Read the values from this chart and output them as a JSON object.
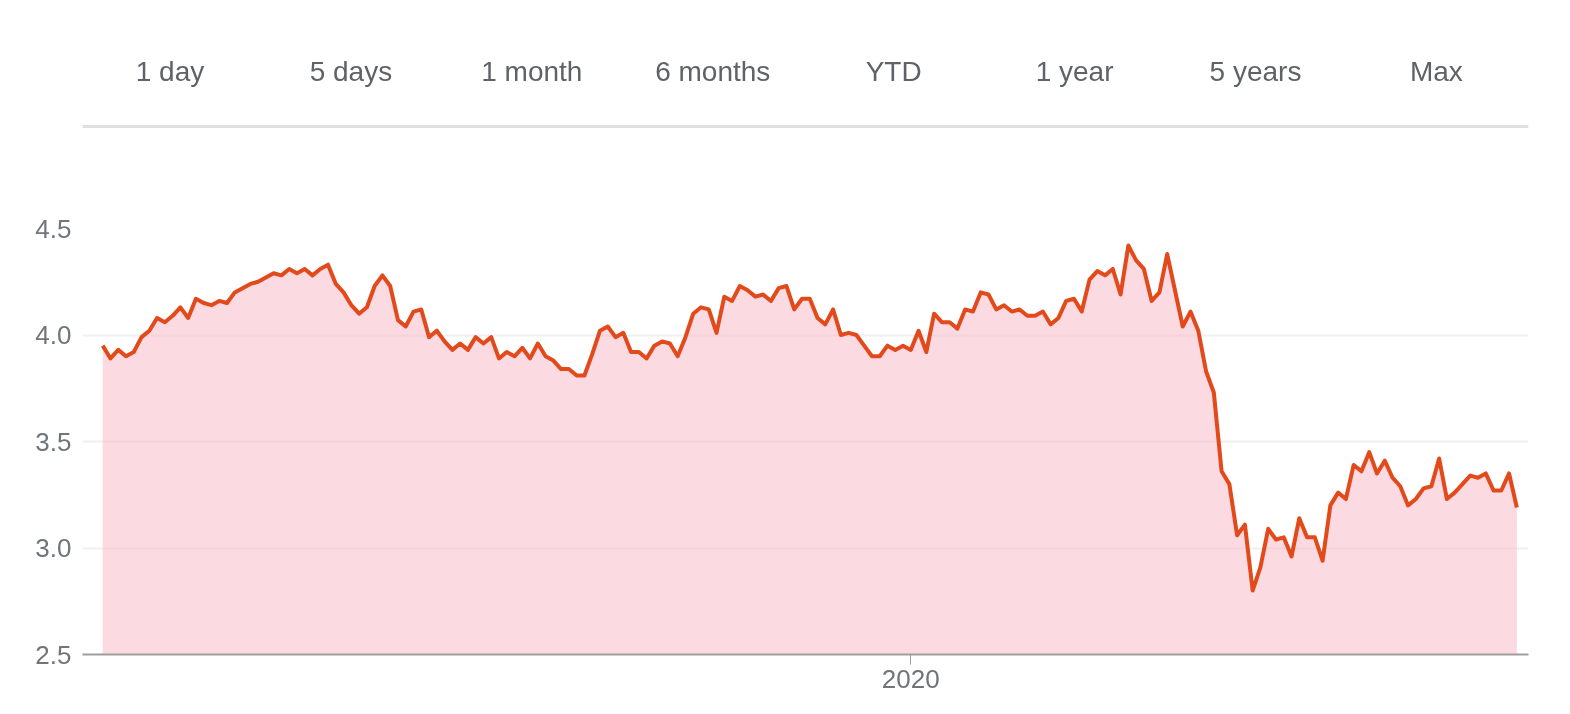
{
  "chart_data": {
    "type": "area",
    "annotations": [
      "1 day",
      "5 days",
      "1 month",
      "6 months",
      "YTD",
      "1 year",
      "5 years",
      "Max"
    ],
    "categories": [
      null,
      null,
      null,
      null,
      null,
      null,
      null,
      null,
      null,
      null,
      null,
      null,
      null,
      null,
      null,
      null,
      null,
      null,
      null,
      null,
      null,
      null,
      null,
      null,
      null,
      null,
      null,
      null,
      null,
      null,
      null,
      null,
      null,
      null,
      null,
      null,
      null,
      null,
      null,
      null,
      null,
      null,
      null,
      null,
      null,
      null,
      null,
      null,
      null,
      null,
      null,
      null,
      null,
      null,
      null,
      null,
      null,
      null,
      null,
      null,
      null,
      null,
      null,
      null,
      null,
      null,
      null,
      null,
      null,
      null,
      null,
      null,
      null,
      null,
      null,
      null,
      null,
      null,
      null,
      null,
      null,
      null,
      null,
      null,
      null,
      null,
      null,
      null,
      null,
      null,
      null,
      null,
      null,
      null,
      null,
      null,
      null,
      null,
      null,
      null,
      null,
      null,
      null,
      null,
      "2020",
      null,
      null,
      null,
      null,
      null,
      null,
      null,
      null,
      null,
      null,
      null,
      null,
      null,
      null,
      null,
      null,
      null,
      null,
      null,
      null,
      null,
      null,
      null,
      null,
      null,
      null,
      null,
      null,
      null,
      null,
      null,
      null,
      null,
      null,
      null,
      null,
      null,
      null,
      null,
      null,
      null,
      null,
      null,
      null,
      null,
      null,
      null,
      null,
      null,
      null,
      null,
      null,
      null,
      null,
      null,
      null,
      null,
      null,
      null,
      null,
      null,
      null,
      null,
      null,
      null,
      null,
      null,
      null,
      null,
      null,
      null,
      null,
      null,
      null,
      null,
      null,
      null,
      null
    ],
    "series": [
      {
        "color": "#e34a1b",
        "values": [
          3.95,
          3.89,
          3.93,
          3.9,
          3.92,
          3.99,
          4.02,
          4.08,
          4.06,
          4.09,
          4.13,
          4.08,
          4.17,
          4.15,
          4.14,
          4.16,
          4.15,
          4.2,
          4.22,
          4.24,
          4.25,
          4.27,
          4.29,
          4.28,
          4.31,
          4.29,
          4.31,
          4.28,
          4.31,
          4.33,
          4.24,
          4.2,
          4.14,
          4.1,
          4.13,
          4.23,
          4.28,
          4.23,
          4.07,
          4.04,
          4.11,
          4.12,
          3.99,
          4.02,
          3.97,
          3.93,
          3.96,
          3.93,
          3.99,
          3.96,
          3.99,
          3.89,
          3.92,
          3.9,
          3.94,
          3.89,
          3.96,
          3.9,
          3.88,
          3.84,
          3.84,
          3.81,
          3.81,
          3.91,
          4.02,
          4.04,
          3.99,
          4.01,
          3.92,
          3.92,
          3.89,
          3.95,
          3.97,
          3.96,
          3.9,
          3.99,
          4.1,
          4.13,
          4.12,
          4.01,
          4.18,
          4.16,
          4.23,
          4.21,
          4.18,
          4.19,
          4.16,
          4.22,
          4.23,
          4.12,
          4.17,
          4.17,
          4.08,
          4.05,
          4.12,
          4.0,
          4.01,
          4.0,
          3.95,
          3.9,
          3.9,
          3.95,
          3.93,
          3.95,
          3.93,
          4.02,
          3.92,
          4.1,
          4.06,
          4.06,
          4.03,
          4.12,
          4.11,
          4.2,
          4.19,
          4.12,
          4.14,
          4.11,
          4.12,
          4.09,
          4.09,
          4.11,
          4.05,
          4.08,
          4.16,
          4.17,
          4.11,
          4.26,
          4.3,
          4.28,
          4.31,
          4.19,
          4.42,
          4.35,
          4.31,
          4.16,
          4.2,
          4.38,
          4.21,
          4.04,
          4.11,
          4.02,
          3.83,
          3.73,
          3.36,
          3.3,
          3.06,
          3.11,
          2.8,
          2.91,
          3.09,
          3.04,
          3.05,
          2.96,
          3.14,
          3.05,
          3.05,
          2.94,
          3.2,
          3.26,
          3.23,
          3.39,
          3.36,
          3.45,
          3.35,
          3.41,
          3.33,
          3.29,
          3.2,
          3.23,
          3.28,
          3.29,
          3.42,
          3.23,
          3.26,
          3.3,
          3.34,
          3.33,
          3.35,
          3.27,
          3.27,
          3.35,
          3.19
        ]
      }
    ],
    "ylim": [
      2.5,
      4.5
    ],
    "yticks": [
      {
        "value": 2.5,
        "label": "2.5"
      },
      {
        "value": 3.0,
        "label": "3.0"
      },
      {
        "value": 3.5,
        "label": "3.5"
      },
      {
        "value": 4.0,
        "label": "4.0"
      },
      {
        "value": 4.5,
        "label": "4.5"
      }
    ],
    "grid": "y"
  }
}
